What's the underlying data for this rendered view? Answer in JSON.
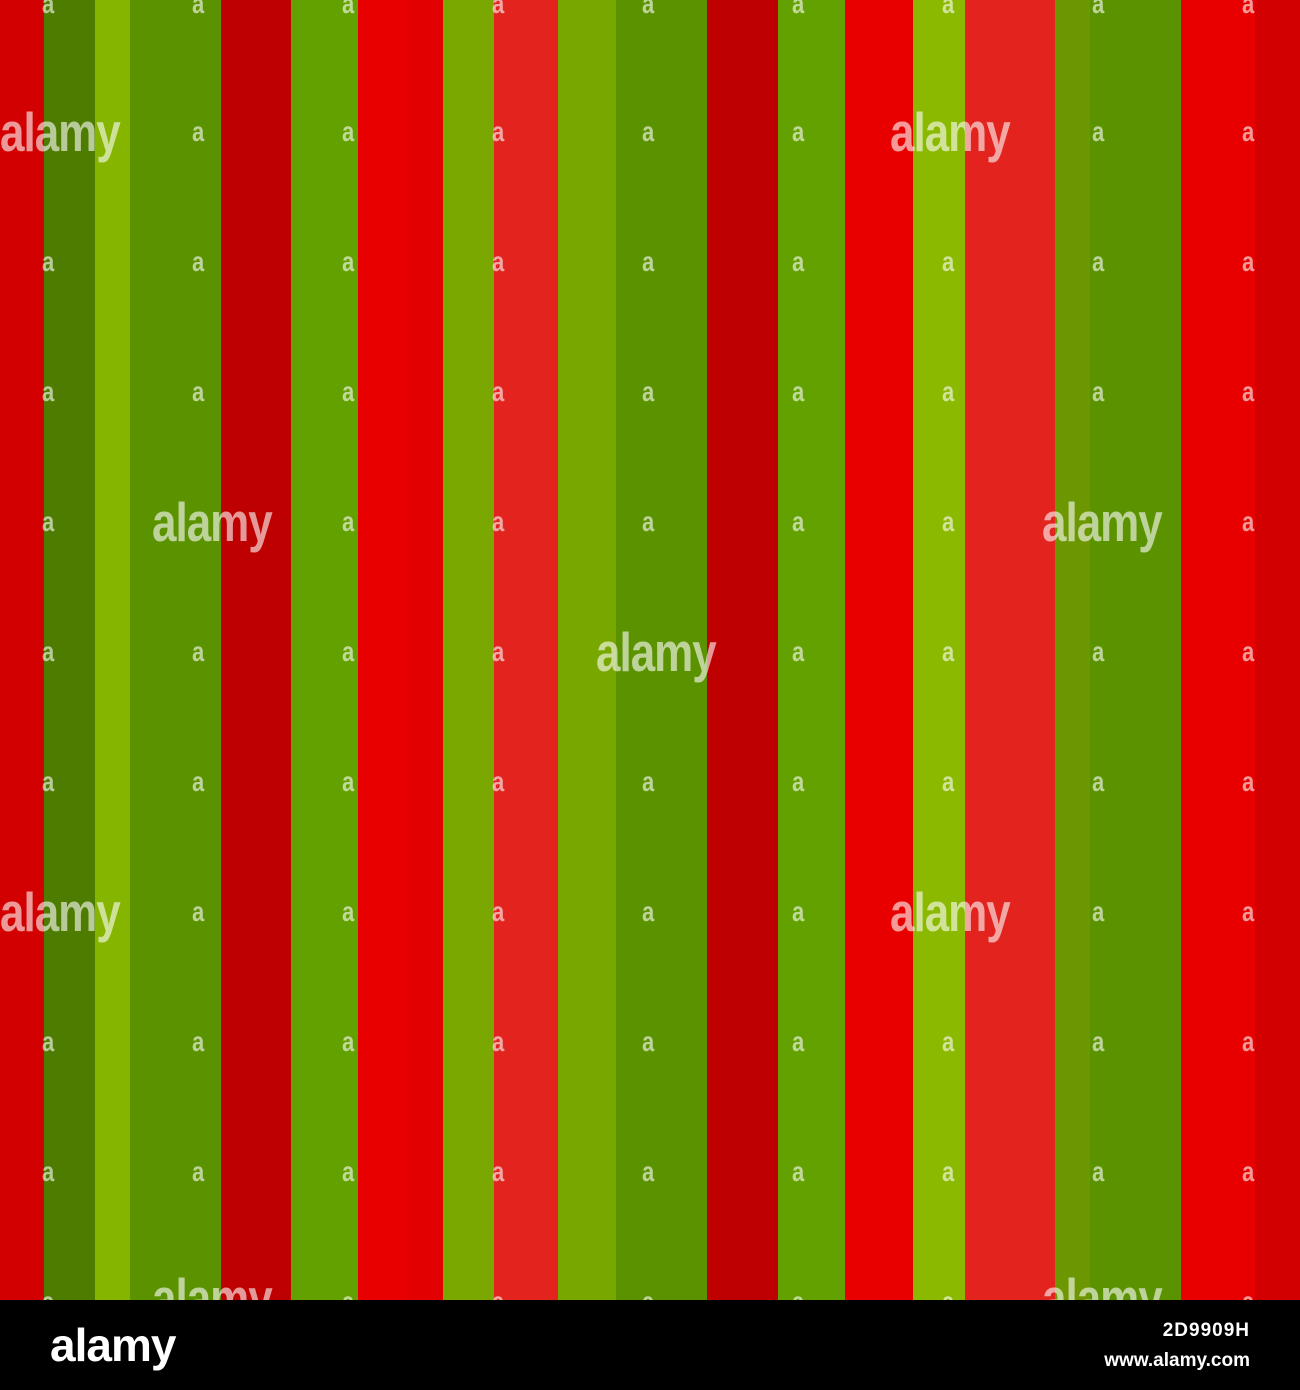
{
  "pattern": {
    "description_colors": {
      "red_1": "#d20000",
      "green_dark": "#4e7c00",
      "lime": "#86b500",
      "green": "#5a9200",
      "dark_red": "#be0000",
      "green_bright": "#62a100",
      "red": "#e80000",
      "red_2": "#e20000",
      "green_lime": "#7aa800",
      "coral_red": "#e2231e",
      "olive_lime": "#78a800",
      "lime_bright": "#8ab900",
      "olive": "#6d9700"
    }
  },
  "watermark": {
    "text": "alamy",
    "small_text": "a"
  },
  "footer": {
    "logo": "alamy",
    "image_id": "2D9909H",
    "url": "www.alamy.com"
  }
}
